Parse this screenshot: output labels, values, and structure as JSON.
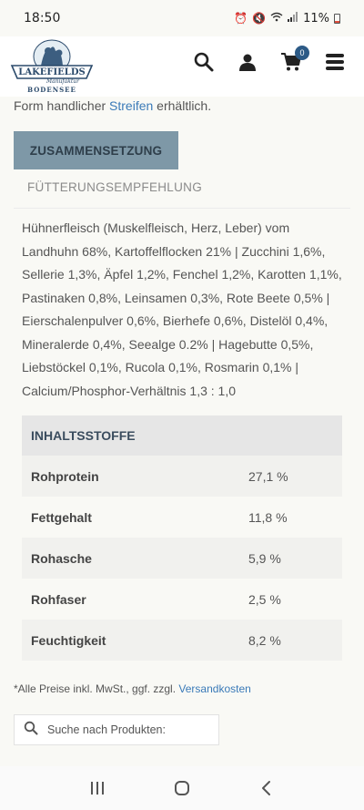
{
  "status": {
    "time": "18:50",
    "battery": "11%"
  },
  "header": {
    "logo_text": "BODENSEE",
    "logo_brand": "LAKEFIELDS",
    "logo_sub": "Manufaktur",
    "cart_count": "0",
    "icons": [
      "search-icon",
      "user-icon",
      "cart-icon",
      "menu-icon"
    ]
  },
  "intro": {
    "prefix": "Form handlicher ",
    "link": "Streifen",
    "suffix": " erhältlich."
  },
  "tabs": [
    {
      "label": "ZUSAMMENSETZUNG",
      "active": true
    },
    {
      "label": "FÜTTERUNGSEMPFEHLUNG",
      "active": false
    }
  ],
  "composition": "Hühnerfleisch (Muskelfleisch, Herz, Leber) vom Landhuhn  68%, Kartoffelflocken 21% | Zucchini 1,6%, Sellerie 1,3%, Äpfel 1,2%, Fenchel 1,2%, Karotten 1,1%, Pastinaken 0,8%, Leinsamen 0,3%, Rote Beete 0,5% | Eierschalenpulver 0,6%, Bierhefe 0,6%, Distelöl 0,4%, Mineralerde 0,4%, Seealge 0.2% | Hagebutte 0,5%, Liebstöckel 0,1%, Rucola 0,1%, Rosmarin 0,1% | Calcium/Phosphor-Verhältnis 1,3 : 1,0",
  "table": {
    "heading": "INHALTSSTOFFE",
    "rows": [
      {
        "label": "Rohprotein",
        "value": "27,1 %"
      },
      {
        "label": "Fettgehalt",
        "value": "11,8 %"
      },
      {
        "label": "Rohasche",
        "value": "5,9 %"
      },
      {
        "label": "Rohfaser",
        "value": "2,5 %"
      },
      {
        "label": "Feuchtigkeit",
        "value": "8,2 %"
      }
    ]
  },
  "footnote": {
    "text": "*Alle Preise inkl. MwSt., ggf. zzgl. ",
    "link": "Versandkosten"
  },
  "search": {
    "placeholder": "Suche nach Produkten:"
  },
  "colors": {
    "accent": "#2c5a86",
    "tab_active_bg": "#7e98a7",
    "link": "#3a7ab8"
  }
}
